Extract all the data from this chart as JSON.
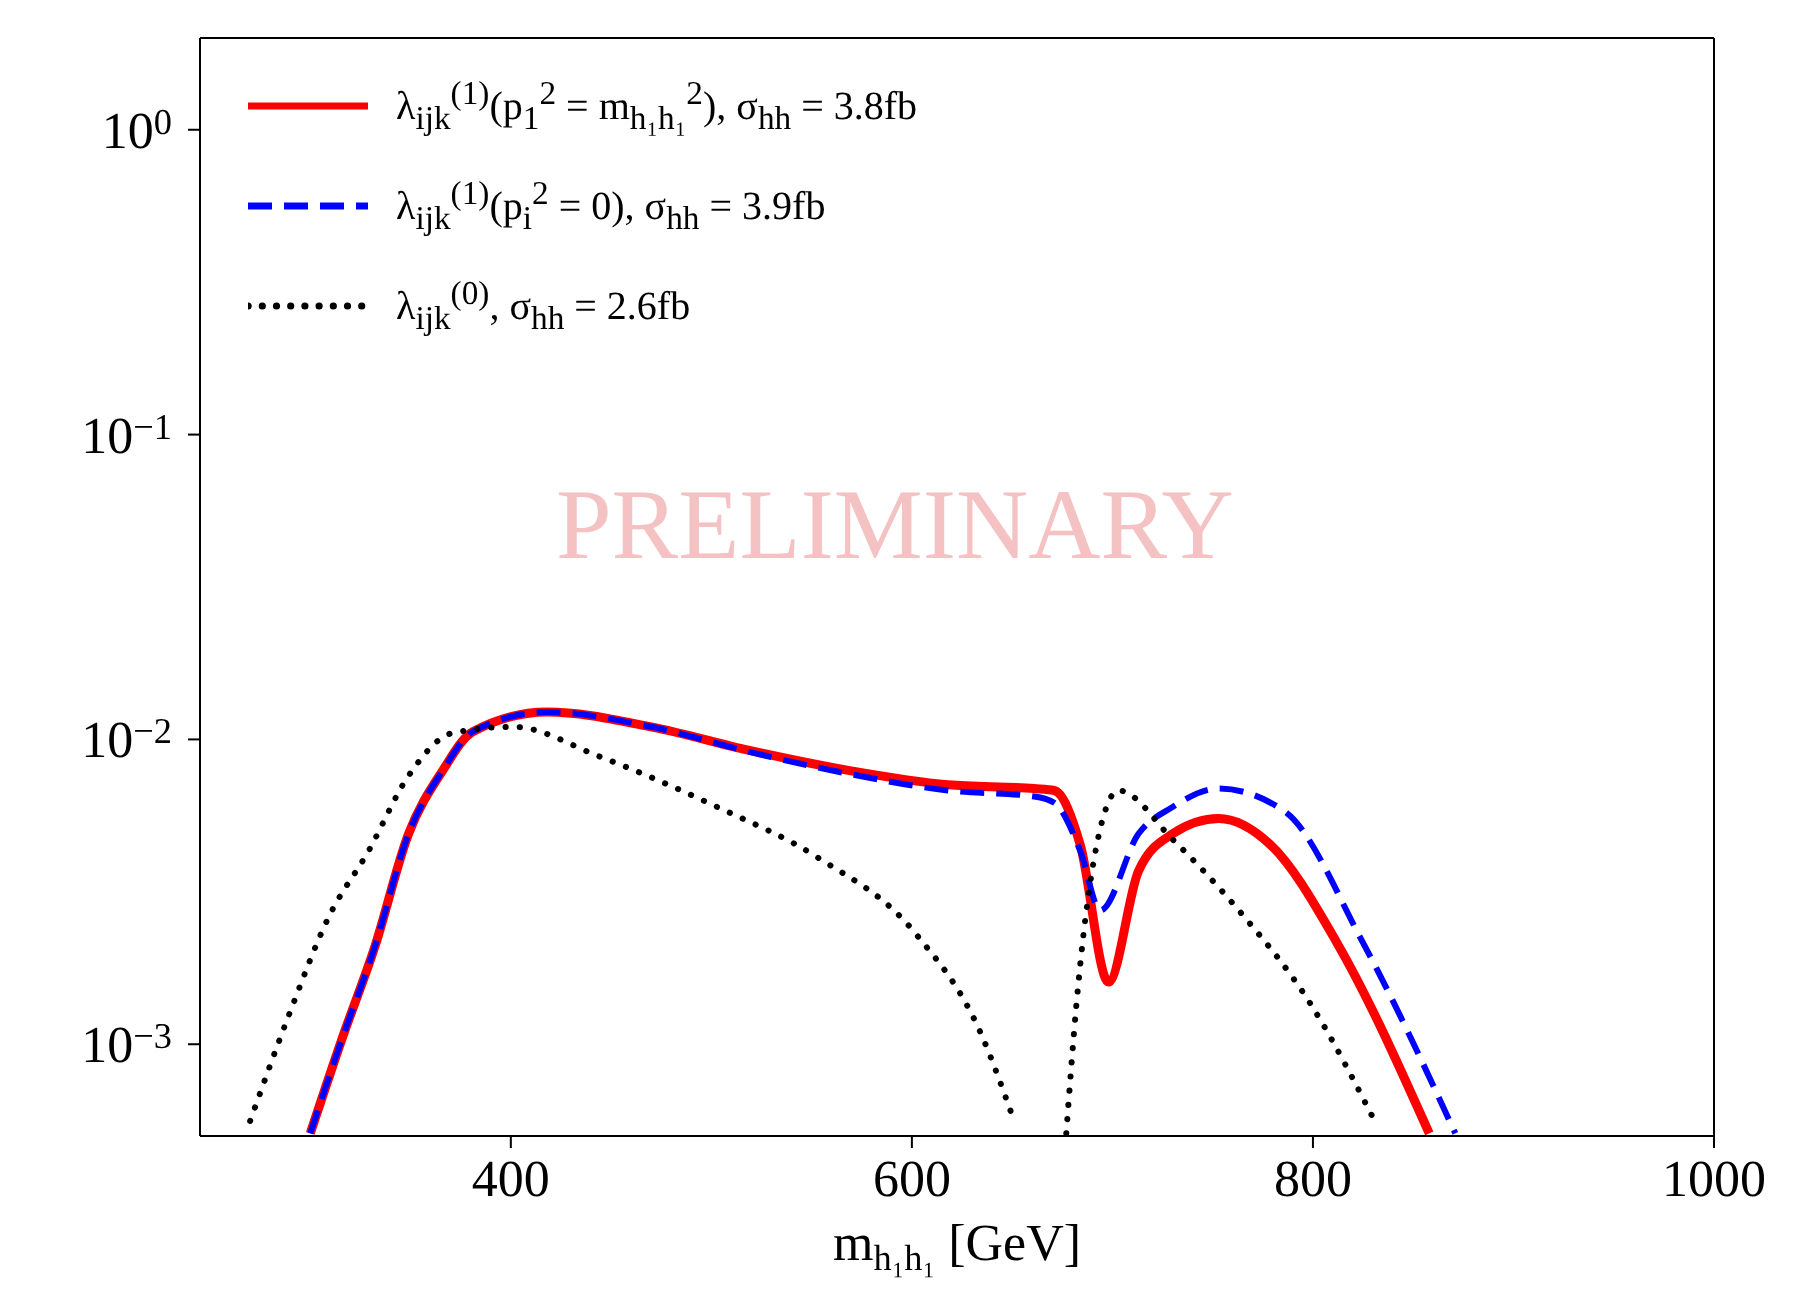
{
  "chart_data": {
    "type": "line",
    "xlabel": "m$_{h₁h₁}$ [GeV]",
    "log": "y",
    "xlim": [
      245,
      1000
    ],
    "xticks": [
      400,
      600,
      800,
      1000
    ],
    "ylim": [
      0.0005,
      2
    ],
    "yticks": [
      {
        "value": 1,
        "label": "10$^{0}$"
      },
      {
        "value": 0.1,
        "label": "10$^{−1}$"
      },
      {
        "value": 0.01,
        "label": "10$^{−2}$"
      },
      {
        "value": 0.001,
        "label": "10$^{−3}$"
      }
    ],
    "grid": false,
    "legend": "top left",
    "marker": "none",
    "annotations": [
      {
        "text": "PRELIMINARY"
      }
    ],
    "series": [
      {
        "name": "λ$_{ijk}$$^{(1)}$(p$_{1}$$^{2}$ = m$_{h₁h₁}$$^{2}$), σ$_{hh}$ = 3.8fb",
        "color": "#ff0000",
        "line_style": "solid",
        "x": [
          300,
          316,
          332,
          349,
          366,
          381,
          418,
          470,
          519,
          569,
          618,
          661,
          671,
          684,
          698,
          713,
          730,
          753,
          779,
          812,
          858
        ],
        "values": [
          0.00051,
          0.00105,
          0.00207,
          0.0049,
          0.0079,
          0.0106,
          0.0123,
          0.011,
          0.0092,
          0.0079,
          0.0071,
          0.0069,
          0.0068,
          0.0045,
          0.0016,
          0.0037,
          0.0049,
          0.0055,
          0.0045,
          0.00215,
          0.00051
        ]
      },
      {
        "name": "λ$_{ijk}$$^{(1)}$(p$_{i}$$^{2}$ = 0), σ$_{hh}$ = 3.9fb",
        "color": "#0000ff",
        "line_style": "dashed",
        "x": [
          300,
          316,
          332,
          349,
          366,
          381,
          418,
          470,
          519,
          569,
          618,
          661,
          671,
          684,
          694,
          713,
          730,
          753,
          786,
          825,
          871
        ],
        "values": [
          0.00051,
          0.00105,
          0.00207,
          0.0049,
          0.0079,
          0.0106,
          0.0123,
          0.011,
          0.0091,
          0.0077,
          0.0068,
          0.0065,
          0.0062,
          0.0043,
          0.00275,
          0.0049,
          0.006,
          0.0069,
          0.0058,
          0.00215,
          0.00051
        ]
      },
      {
        "name": "λ$_{ijk}$$^{(0)}$, σ$_{hh}$ = 2.6fb",
        "color": "#000000",
        "line_style": "dotted",
        "x": [
          270,
          290,
          309,
          329,
          349,
          371,
          401,
          444,
          503,
          553,
          602,
          634,
          651,
          664,
          677,
          682,
          691,
          703,
          730,
          763,
          799,
          832
        ],
        "values": [
          0.00056,
          0.00128,
          0.0026,
          0.0043,
          0.0076,
          0.0105,
          0.011,
          0.0088,
          0.006,
          0.0041,
          0.0023,
          0.0011,
          0.00056,
          null,
          0.00051,
          0.00134,
          0.0041,
          0.0068,
          0.0047,
          0.00275,
          0.00135,
          0.00054
        ]
      }
    ]
  }
}
